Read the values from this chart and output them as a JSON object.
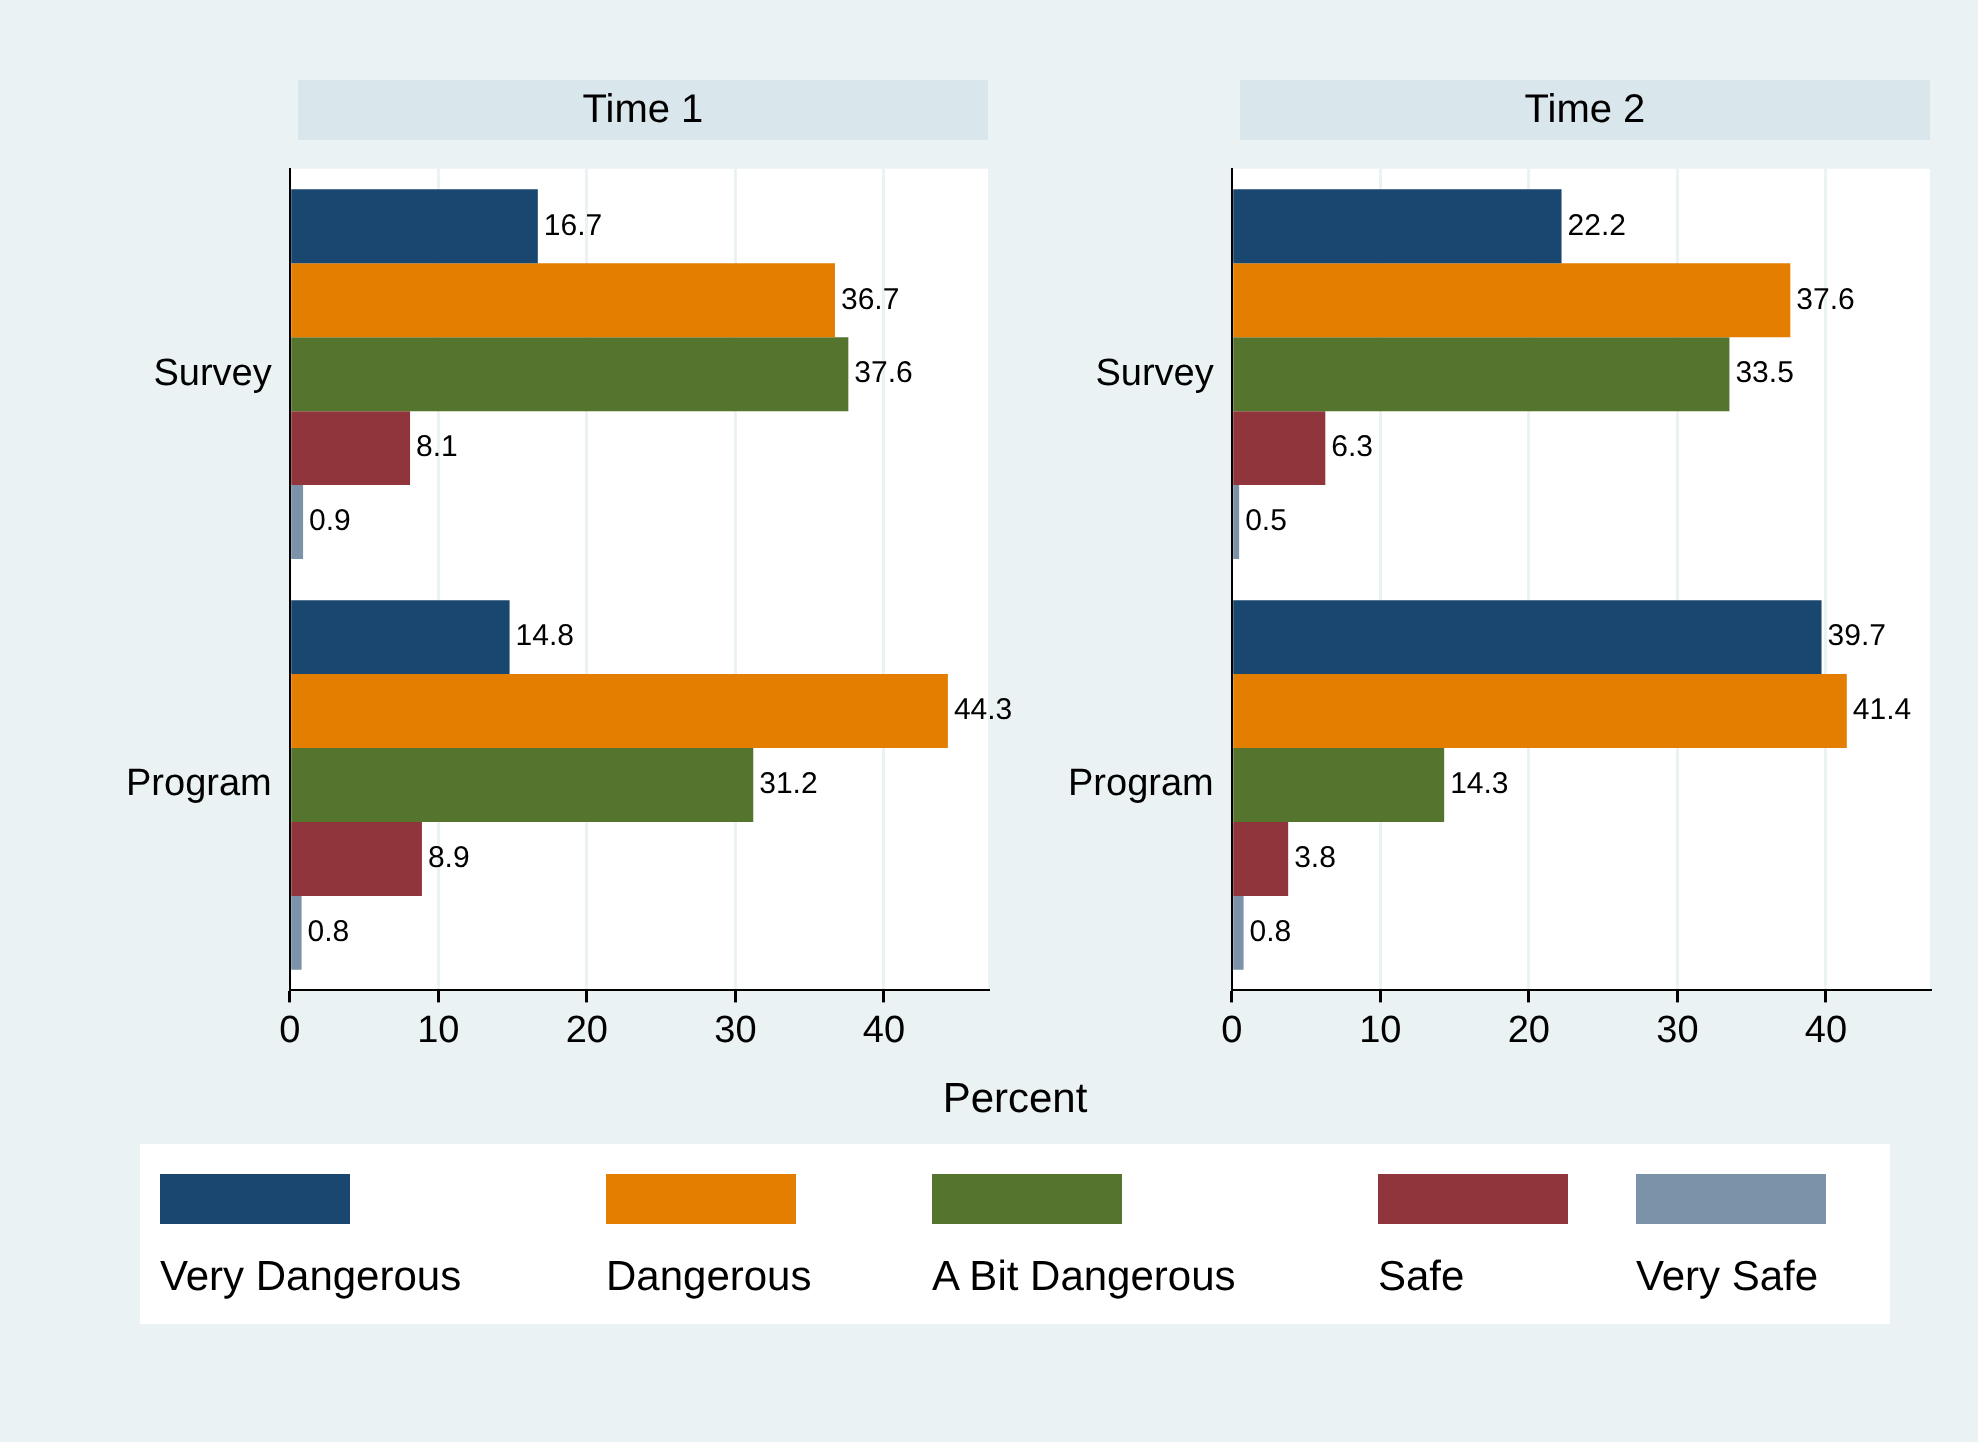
{
  "chart_data": [
    {
      "type": "bar",
      "orientation": "horizontal",
      "title": "Time 1",
      "xlabel": "Percent",
      "categories": [
        "Survey",
        "Program"
      ],
      "xlim": [
        0,
        47
      ],
      "xticks": [
        0,
        10,
        20,
        30,
        40
      ],
      "grid": "x",
      "data_labels": true,
      "legend": "bottom",
      "series": [
        {
          "name": "Very Dangerous",
          "color": "#1a476f",
          "values": [
            16.7,
            14.8
          ]
        },
        {
          "name": "Dangerous",
          "color": "#e37e00",
          "values": [
            36.7,
            44.3
          ]
        },
        {
          "name": "A Bit Dangerous",
          "color": "#55752f",
          "values": [
            37.6,
            31.2
          ]
        },
        {
          "name": "Safe",
          "color": "#90353b",
          "values": [
            8.1,
            8.9
          ]
        },
        {
          "name": "Very Safe",
          "color": "#7b92a8",
          "values": [
            0.9,
            0.8
          ]
        }
      ]
    },
    {
      "type": "bar",
      "orientation": "horizontal",
      "title": "Time 2",
      "categories": [
        "Survey",
        "Program"
      ],
      "xlim": [
        0,
        47
      ],
      "xticks": [
        0,
        10,
        20,
        30,
        40
      ],
      "grid": "x",
      "data_labels": true,
      "series": [
        {
          "color": "#1a476f",
          "values": [
            22.2,
            39.7
          ]
        },
        {
          "color": "#e37e00",
          "values": [
            37.6,
            41.4
          ]
        },
        {
          "color": "#55752f",
          "values": [
            33.5,
            14.3
          ]
        },
        {
          "color": "#90353b",
          "values": [
            6.3,
            3.8
          ]
        },
        {
          "color": "#7b92a8",
          "values": [
            0.5,
            0.8
          ]
        }
      ]
    }
  ]
}
